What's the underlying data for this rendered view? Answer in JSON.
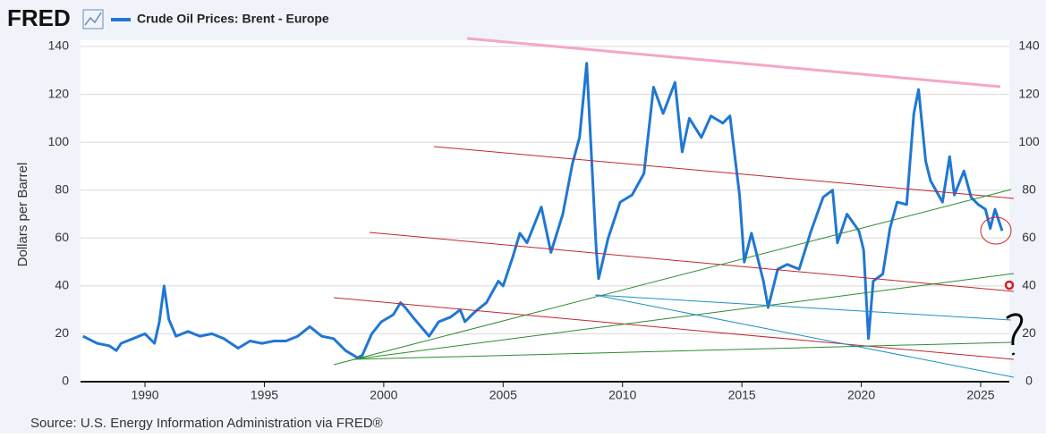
{
  "logo": "FRED",
  "chart_data": {
    "type": "line",
    "ylabel": "Dollars per Barrel",
    "source": "Source: U.S. Energy Information Administration via FRED®",
    "x": [
      1987.4,
      1987.6,
      1988.0,
      1988.5,
      1988.8,
      1989.0,
      1989.5,
      1990.0,
      1990.4,
      1990.6,
      1990.8,
      1991.0,
      1991.3,
      1991.8,
      1992.3,
      1992.8,
      1993.3,
      1993.9,
      1994.4,
      1994.9,
      1995.4,
      1995.9,
      1996.4,
      1996.9,
      1997.4,
      1997.9,
      1998.4,
      1998.9,
      1999.1,
      1999.5,
      1999.9,
      2000.4,
      2000.7,
      2000.9,
      2001.3,
      2001.9,
      2002.3,
      2002.8,
      2003.2,
      2003.4,
      2003.8,
      2004.3,
      2004.8,
      2005.0,
      2005.4,
      2005.7,
      2006.0,
      2006.6,
      2007.0,
      2007.5,
      2007.9,
      2008.2,
      2008.5,
      2008.9,
      2009.0,
      2009.4,
      2009.9,
      2010.4,
      2010.9,
      2011.3,
      2011.7,
      2012.2,
      2012.5,
      2012.8,
      2013.3,
      2013.7,
      2014.2,
      2014.5,
      2014.9,
      2015.1,
      2015.4,
      2015.9,
      2016.1,
      2016.5,
      2016.9,
      2017.4,
      2017.9,
      2018.4,
      2018.8,
      2019.0,
      2019.4,
      2019.9,
      2020.1,
      2020.3,
      2020.5,
      2020.9,
      2021.2,
      2021.5,
      2021.9,
      2022.2,
      2022.4,
      2022.7,
      2022.9,
      2023.4,
      2023.7,
      2023.9,
      2024.3,
      2024.6,
      2024.9,
      2025.2,
      2025.4,
      2025.6,
      2025.9
    ],
    "series": [
      {
        "name": "Crude Oil Prices: Brent - Europe",
        "color": "#2077d3",
        "values": [
          19,
          18,
          16,
          15,
          13,
          16,
          18,
          20,
          16,
          25,
          40,
          26,
          19,
          21,
          19,
          20,
          18,
          14,
          17,
          16,
          17,
          17,
          19,
          23,
          19,
          18,
          13,
          10,
          11,
          20,
          25,
          28,
          33,
          31,
          26,
          19,
          25,
          27,
          30,
          25,
          29,
          33,
          42,
          40,
          52,
          62,
          58,
          73,
          54,
          70,
          91,
          102,
          133,
          55,
          43,
          60,
          75,
          78,
          87,
          123,
          112,
          125,
          96,
          110,
          102,
          111,
          108,
          111,
          78,
          50,
          62,
          42,
          31,
          47,
          49,
          47,
          63,
          77,
          80,
          58,
          70,
          63,
          55,
          18,
          42,
          45,
          64,
          75,
          74,
          112,
          122,
          92,
          84,
          75,
          94,
          78,
          88,
          77,
          74,
          72,
          64,
          72,
          63
        ]
      }
    ],
    "xlim": [
      1987.3,
      2026.2
    ],
    "xticks": [
      1990,
      1995,
      2000,
      2005,
      2010,
      2015,
      2020,
      2025
    ],
    "ylim": [
      0,
      140
    ],
    "yticks": [
      0,
      20,
      40,
      60,
      80,
      100,
      120,
      140
    ],
    "y2lim": [
      0,
      140
    ],
    "y2ticks": [
      0,
      20,
      40,
      60,
      80,
      100,
      120,
      140
    ],
    "grid": true
  }
}
